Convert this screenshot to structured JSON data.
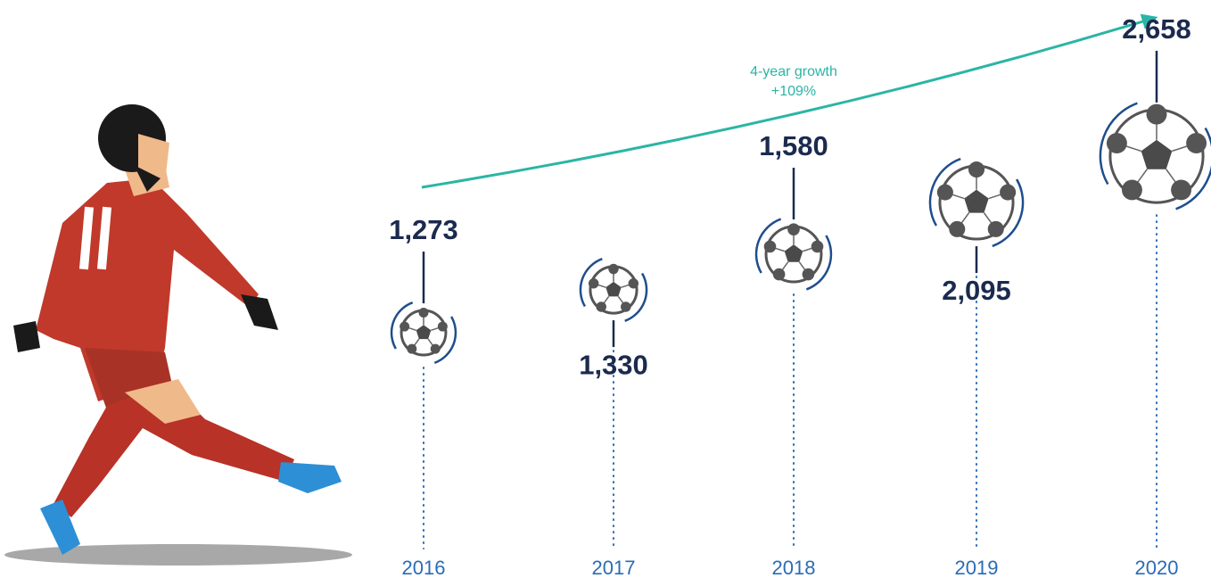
{
  "chart_data": {
    "type": "pictorial",
    "annotation": [
      "4-year growth",
      "+109%"
    ],
    "categories": [
      "2016",
      "2017",
      "2018",
      "2019",
      "2020"
    ],
    "values": [
      1273,
      1330,
      1580,
      2095,
      2658
    ],
    "value_labels": [
      "1,273",
      "1,330",
      "1,580",
      "2,095",
      "2,658"
    ],
    "color": "#1b2a4e"
  }
}
